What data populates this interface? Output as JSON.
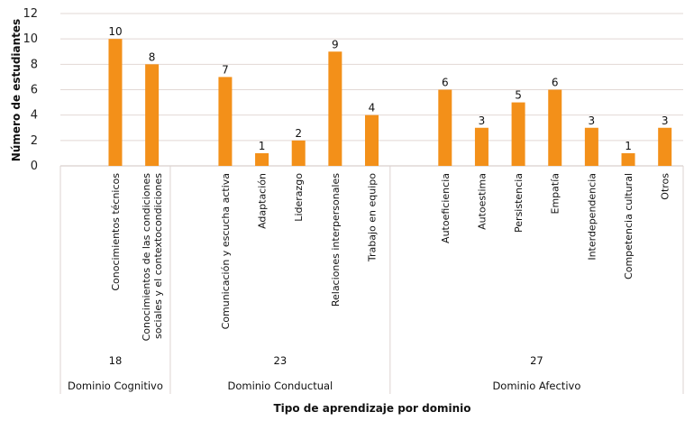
{
  "chart_data": {
    "type": "bar",
    "title": "",
    "xlabel": "Tipo de aprendizaje por dominio",
    "ylabel": "Número de estudiantes",
    "ylim": [
      0,
      12
    ],
    "yticks": [
      0,
      2,
      4,
      6,
      8,
      10,
      12
    ],
    "grid": true,
    "bar_color": "#f39019",
    "groups": [
      {
        "name": "Dominio Cognitivo",
        "total": "18",
        "categories": [
          "Conocimientos técnicos",
          "Conocimientos de las condiciones sociales y el contextocondiciones"
        ],
        "category_lines": [
          [
            "Conocimientos técnicos"
          ],
          [
            "Conocimientos de las condiciones",
            "sociales y el contextocondiciones"
          ]
        ],
        "values": [
          10,
          8
        ]
      },
      {
        "name": "Dominio Conductual",
        "total": "23",
        "categories": [
          "Comunicación y escucha activa",
          "Adaptación",
          "Liderazgo",
          "Relaciones interpersonales",
          "Trabajo en equipo"
        ],
        "category_lines": [
          [
            "Comunicación y escucha activa"
          ],
          [
            "Adaptación"
          ],
          [
            "Liderazgo"
          ],
          [
            "Relaciones interpersonales"
          ],
          [
            "Trabajo en equipo"
          ]
        ],
        "values": [
          7,
          1,
          2,
          9,
          4
        ]
      },
      {
        "name": "Dominio Afectivo",
        "total": "27",
        "categories": [
          "Autoeficiencia",
          "Autoestima",
          "Persistencia",
          "Empatía",
          "Interdependencia",
          "Competencia cultural",
          "Otros"
        ],
        "category_lines": [
          [
            "Autoeficiencia"
          ],
          [
            "Autoestima"
          ],
          [
            "Persistencia"
          ],
          [
            "Empatía"
          ],
          [
            "Interdependencia"
          ],
          [
            "Competencia cultural"
          ],
          [
            "Otros"
          ]
        ],
        "values": [
          6,
          3,
          5,
          6,
          3,
          1,
          3
        ]
      }
    ]
  }
}
